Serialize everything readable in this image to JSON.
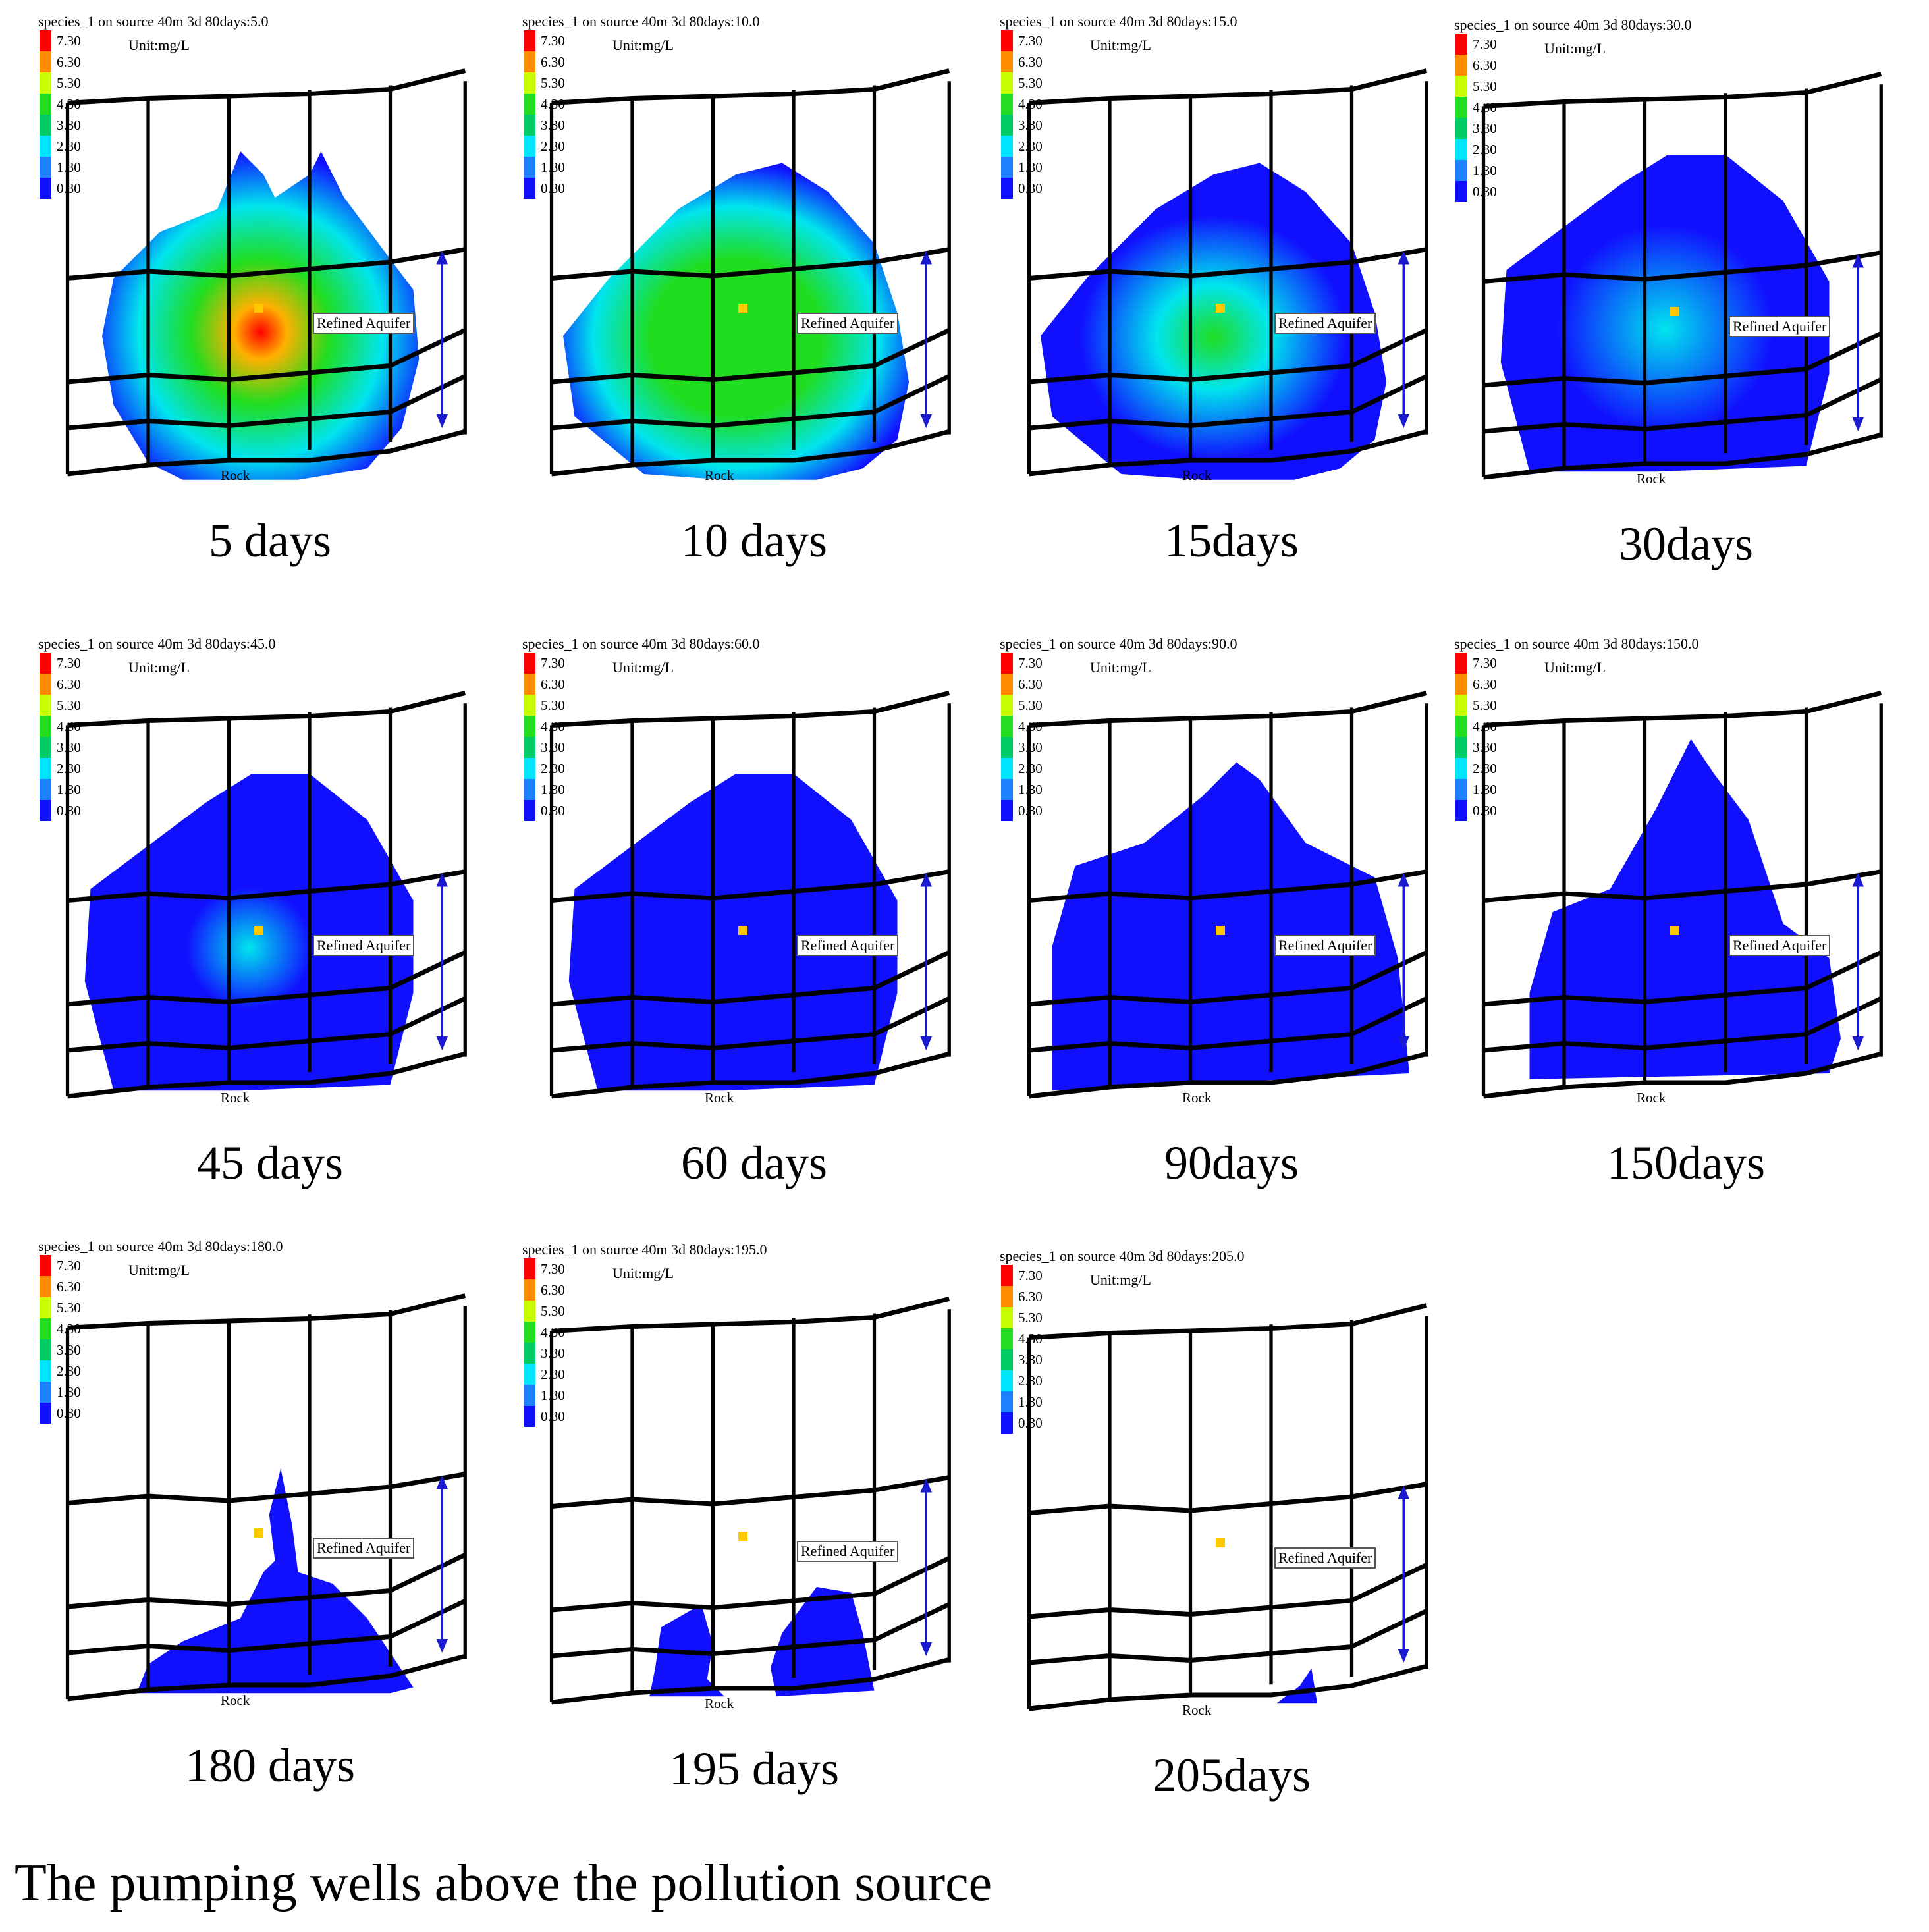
{
  "figure": {
    "caption": "The pumping wells above the pollution source",
    "legend_levels": [
      "7.30",
      "6.30",
      "5.30",
      "4.30",
      "3.30",
      "2.30",
      "1.30",
      "0.30"
    ],
    "legend_colors": [
      "#ff0000",
      "#ff8c00",
      "#c8ff00",
      "#22dd22",
      "#00cc66",
      "#00e5ff",
      "#1e7fff",
      "#1010ff"
    ],
    "unit": "Unit:mg/L",
    "aquifer_label": "Refined Aquifer",
    "rock_label": "Rock",
    "plume_colors": {
      "peak": "#ff0000",
      "high": "#ffb000",
      "mid": "#20dd20",
      "low": "#00e5ee",
      "edge": "#1010ff"
    },
    "source_marker_color": "#ffc800",
    "arrow_color": "#1a1ad0",
    "panels": [
      {
        "title": "species_1 on source 40m 3d 80days:5.0",
        "caption": "5 days",
        "max_level": 7.3
      },
      {
        "title": "species_1 on source 40m 3d 80days:10.0",
        "caption": "10 days",
        "max_level": 5.0
      },
      {
        "title": "species_1 on source 40m 3d 80days:15.0",
        "caption": "15days",
        "max_level": 4.0
      },
      {
        "title": "species_1 on source 40m 3d 80days:30.0",
        "caption": "30days",
        "max_level": 2.3
      },
      {
        "title": "species_1 on source 40m 3d 80days:45.0",
        "caption": "45 days",
        "max_level": 1.6
      },
      {
        "title": "species_1 on source 40m 3d 80days:60.0",
        "caption": "60 days",
        "max_level": 1.3
      },
      {
        "title": "species_1 on source 40m 3d 80days:90.0",
        "caption": "90days",
        "max_level": 0.8
      },
      {
        "title": "species_1 on source 40m 3d 80days:150.0",
        "caption": "150days",
        "max_level": 0.5
      },
      {
        "title": "species_1 on source 40m 3d 80days:180.0",
        "caption": "180 days",
        "max_level": 0.4
      },
      {
        "title": "species_1 on source 40m 3d 80days:195.0",
        "caption": "195 days",
        "max_level": 0.3
      },
      {
        "title": "species_1 on source 40m 3d 80days:205.0",
        "caption": "205days",
        "max_level": 0.3
      }
    ]
  }
}
